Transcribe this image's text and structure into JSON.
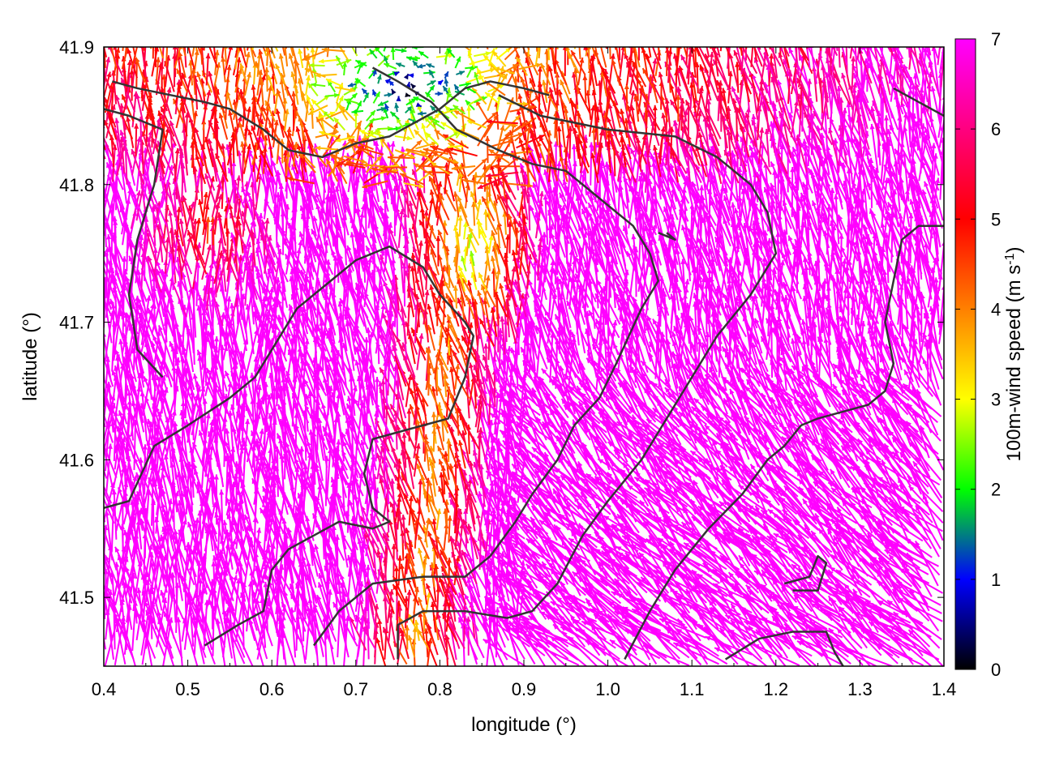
{
  "chart_data": {
    "type": "vector-field",
    "xlabel": "longitude (°)",
    "ylabel": "latitude (°)",
    "xlim": [
      0.4,
      1.4
    ],
    "ylim": [
      41.45,
      41.9
    ],
    "x_ticks": [
      "0.4",
      "0.5",
      "0.6",
      "0.7",
      "0.8",
      "0.9",
      "1.0",
      "1.1",
      "1.2",
      "1.3",
      "1.4"
    ],
    "y_ticks": [
      "41.5",
      "41.6",
      "41.7",
      "41.8",
      "41.9"
    ],
    "grid": false,
    "colorbar": {
      "label_main": "100m-wind speed (m s",
      "label_sup": "-1",
      "label_end": ")",
      "range": [
        0,
        7
      ],
      "ticks": [
        "0",
        "1",
        "2",
        "3",
        "4",
        "5",
        "6",
        "7"
      ],
      "colors": [
        "#000000",
        "#0000ff",
        "#00ff00",
        "#ffff00",
        "#ff8000",
        "#ff0000",
        "#ff00ff"
      ]
    },
    "field": {
      "grid_lon_step": 0.012,
      "grid_lat_step": 0.0065,
      "general_direction_deg": 100,
      "description_regions": [
        {
          "name": "calm north",
          "lon": [
            0.62,
            0.9
          ],
          "lat": [
            41.78,
            41.9
          ],
          "speed_range": [
            0.3,
            3.5
          ]
        },
        {
          "name": "moderate central strip",
          "lon": [
            0.72,
            0.9
          ],
          "lat": [
            41.45,
            41.78
          ],
          "speed_range": [
            3.5,
            6.5
          ]
        },
        {
          "name": "strong south-east",
          "lon": [
            0.9,
            1.4
          ],
          "lat": [
            41.45,
            41.75
          ],
          "speed_range": [
            7,
            7
          ]
        }
      ]
    },
    "coastlines": [
      [
        [
          0.4,
          41.565
        ],
        [
          0.43,
          41.57
        ],
        [
          0.46,
          41.61
        ],
        [
          0.5,
          41.625
        ],
        [
          0.55,
          41.645
        ],
        [
          0.58,
          41.66
        ],
        [
          0.6,
          41.68
        ],
        [
          0.63,
          41.71
        ],
        [
          0.67,
          41.73
        ],
        [
          0.7,
          41.745
        ],
        [
          0.74,
          41.755
        ],
        [
          0.78,
          41.74
        ],
        [
          0.8,
          41.72
        ],
        [
          0.83,
          41.7
        ],
        [
          0.84,
          41.69
        ],
        [
          0.83,
          41.66
        ],
        [
          0.81,
          41.63
        ],
        [
          0.78,
          41.625
        ],
        [
          0.72,
          41.615
        ],
        [
          0.71,
          41.59
        ],
        [
          0.72,
          41.565
        ],
        [
          0.74,
          41.555
        ],
        [
          0.72,
          41.55
        ],
        [
          0.68,
          41.555
        ],
        [
          0.62,
          41.535
        ],
        [
          0.6,
          41.52
        ],
        [
          0.59,
          41.49
        ],
        [
          0.56,
          41.48
        ],
        [
          0.52,
          41.465
        ]
      ],
      [
        [
          0.65,
          41.465
        ],
        [
          0.68,
          41.49
        ],
        [
          0.72,
          41.51
        ],
        [
          0.78,
          41.515
        ],
        [
          0.83,
          41.515
        ],
        [
          0.86,
          41.53
        ],
        [
          0.89,
          41.555
        ],
        [
          0.91,
          41.575
        ],
        [
          0.94,
          41.6
        ],
        [
          0.96,
          41.625
        ],
        [
          0.99,
          41.645
        ],
        [
          1.01,
          41.67
        ],
        [
          1.04,
          41.71
        ],
        [
          1.06,
          41.73
        ],
        [
          1.05,
          41.75
        ],
        [
          1.03,
          41.77
        ],
        [
          1.0,
          41.785
        ],
        [
          0.97,
          41.8
        ],
        [
          0.95,
          41.81
        ],
        [
          0.91,
          41.815
        ],
        [
          0.87,
          41.825
        ],
        [
          0.82,
          41.84
        ],
        [
          0.79,
          41.86
        ],
        [
          0.75,
          41.875
        ],
        [
          0.72,
          41.885
        ]
      ],
      [
        [
          0.75,
          41.455
        ],
        [
          0.75,
          41.48
        ],
        [
          0.78,
          41.49
        ],
        [
          0.83,
          41.49
        ],
        [
          0.88,
          41.485
        ],
        [
          0.91,
          41.49
        ],
        [
          0.94,
          41.51
        ],
        [
          0.97,
          41.545
        ],
        [
          1.0,
          41.57
        ],
        [
          1.04,
          41.6
        ],
        [
          1.07,
          41.63
        ],
        [
          1.1,
          41.66
        ],
        [
          1.13,
          41.69
        ],
        [
          1.17,
          41.72
        ],
        [
          1.2,
          41.75
        ],
        [
          1.19,
          41.78
        ],
        [
          1.17,
          41.8
        ],
        [
          1.13,
          41.82
        ],
        [
          1.08,
          41.835
        ],
        [
          1.0,
          41.84
        ],
        [
          0.92,
          41.85
        ],
        [
          0.87,
          41.865
        ]
      ],
      [
        [
          1.02,
          41.455
        ],
        [
          1.05,
          41.49
        ],
        [
          1.08,
          41.52
        ],
        [
          1.12,
          41.55
        ],
        [
          1.16,
          41.575
        ],
        [
          1.19,
          41.6
        ],
        [
          1.21,
          41.61
        ],
        [
          1.23,
          41.625
        ],
        [
          1.25,
          41.63
        ],
        [
          1.28,
          41.635
        ],
        [
          1.31,
          41.64
        ],
        [
          1.33,
          41.65
        ],
        [
          1.34,
          41.67
        ],
        [
          1.33,
          41.7
        ],
        [
          1.34,
          41.73
        ],
        [
          1.35,
          41.76
        ],
        [
          1.37,
          41.77
        ],
        [
          1.4,
          41.77
        ]
      ],
      [
        [
          1.14,
          41.455
        ],
        [
          1.18,
          41.47
        ],
        [
          1.22,
          41.475
        ],
        [
          1.26,
          41.475
        ],
        [
          1.27,
          41.46
        ],
        [
          1.28,
          41.45
        ]
      ],
      [
        [
          0.47,
          41.66
        ],
        [
          0.44,
          41.68
        ],
        [
          0.43,
          41.72
        ],
        [
          0.44,
          41.76
        ],
        [
          0.46,
          41.8
        ],
        [
          0.47,
          41.84
        ],
        [
          0.43,
          41.85
        ],
        [
          0.4,
          41.855
        ]
      ],
      [
        [
          0.41,
          41.875
        ],
        [
          0.44,
          41.87
        ],
        [
          0.48,
          41.865
        ],
        [
          0.52,
          41.86
        ],
        [
          0.55,
          41.855
        ],
        [
          0.59,
          41.84
        ],
        [
          0.62,
          41.825
        ],
        [
          0.66,
          41.82
        ],
        [
          0.7,
          41.83
        ],
        [
          0.74,
          41.835
        ],
        [
          0.77,
          41.845
        ],
        [
          0.8,
          41.855
        ],
        [
          0.83,
          41.87
        ],
        [
          0.86,
          41.875
        ],
        [
          0.9,
          41.87
        ],
        [
          0.93,
          41.865
        ]
      ],
      [
        [
          1.34,
          41.87
        ],
        [
          1.37,
          41.86
        ],
        [
          1.4,
          41.85
        ]
      ],
      [
        [
          1.21,
          41.51
        ],
        [
          1.24,
          41.515
        ],
        [
          1.25,
          41.53
        ],
        [
          1.26,
          41.525
        ],
        [
          1.25,
          41.505
        ],
        [
          1.22,
          41.505
        ]
      ],
      [
        [
          1.06,
          41.765
        ],
        [
          1.08,
          41.76
        ],
        [
          1.07,
          41.765
        ]
      ]
    ]
  }
}
